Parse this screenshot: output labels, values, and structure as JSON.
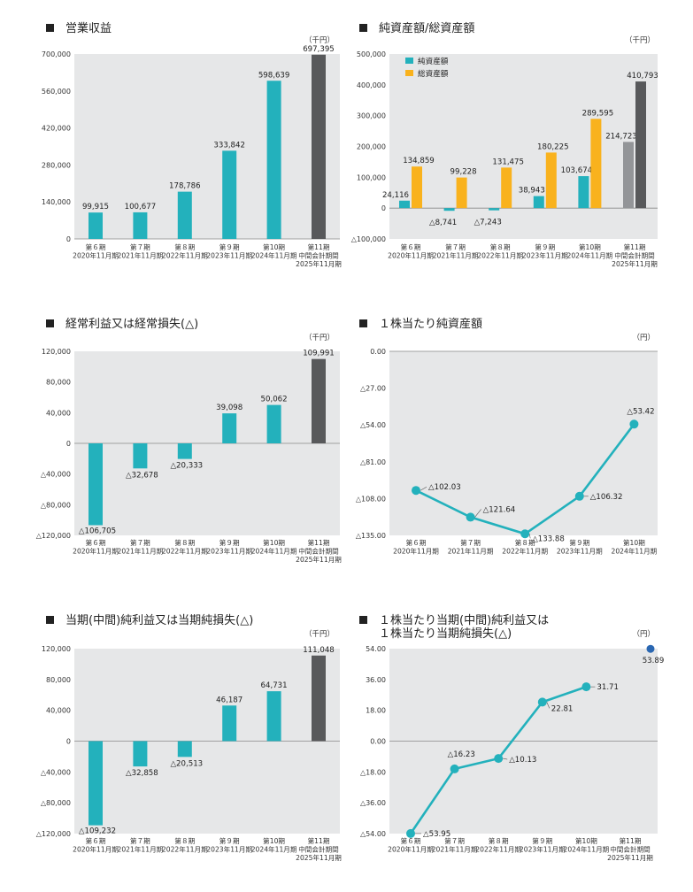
{
  "colors": {
    "plot_bg": "#e6e7e8",
    "teal": "#23b1bc",
    "dark": "#58595b",
    "orange": "#f9b21d",
    "gray": "#939598",
    "interim_dot": "#2a67b2",
    "axis": "#888888"
  },
  "chart_data": [
    {
      "id": "revenue",
      "type": "bar",
      "title": "営業収益",
      "unit": "（千円）",
      "categories": [
        [
          "第６期",
          "2020年11月期"
        ],
        [
          "第７期",
          "2021年11月期"
        ],
        [
          "第８期",
          "2022年11月期"
        ],
        [
          "第９期",
          "2023年11月期"
        ],
        [
          "第10期",
          "2024年11月期"
        ],
        [
          "第11期",
          "中間会計期間",
          "2025年11月期"
        ]
      ],
      "series": [
        {
          "values": [
            99915,
            100677,
            178786,
            333842,
            598639,
            697395
          ]
        }
      ],
      "labels": [
        "99,915",
        "100,677",
        "178,786",
        "333,842",
        "598,639",
        "697,395"
      ],
      "ylim": [
        0,
        700000
      ],
      "yticks": [
        0,
        140000,
        280000,
        420000,
        560000,
        700000
      ],
      "ytick_labels": [
        "0",
        "140,000",
        "280,000",
        "420,000",
        "560,000",
        "700,000"
      ]
    },
    {
      "id": "assets",
      "type": "bar",
      "title": "純資産額/総資産額",
      "unit": "（千円）",
      "categories": [
        [
          "第６期",
          "2020年11月期"
        ],
        [
          "第７期",
          "2021年11月期"
        ],
        [
          "第８期",
          "2022年11月期"
        ],
        [
          "第９期",
          "2023年11月期"
        ],
        [
          "第10期",
          "2024年11月期"
        ],
        [
          "第11期",
          "中間会計期間",
          "2025年11月期"
        ]
      ],
      "series": [
        {
          "name": "純資産額",
          "values": [
            24116,
            -8741,
            -7243,
            38943,
            103674,
            214723
          ],
          "labels": [
            "24,116",
            "△8,741",
            "△7,243",
            "38,943",
            "103,674",
            "214,723"
          ]
        },
        {
          "name": "総資産額",
          "values": [
            134859,
            99228,
            131475,
            180225,
            289595,
            410793
          ],
          "labels": [
            "134,859",
            "99,228",
            "131,475",
            "180,225",
            "289,595",
            "410,793"
          ]
        }
      ],
      "legend": "top-left",
      "ylim": [
        -100000,
        500000
      ],
      "yticks": [
        -100000,
        0,
        100000,
        200000,
        300000,
        400000,
        500000
      ],
      "ytick_labels": [
        "△100,000",
        "0",
        "100,000",
        "200,000",
        "300,000",
        "400,000",
        "500,000"
      ]
    },
    {
      "id": "ordinary",
      "type": "bar",
      "title": "経常利益又は経常損失(△)",
      "unit": "（千円）",
      "categories": [
        [
          "第６期",
          "2020年11月期"
        ],
        [
          "第７期",
          "2021年11月期"
        ],
        [
          "第８期",
          "2022年11月期"
        ],
        [
          "第９期",
          "2023年11月期"
        ],
        [
          "第10期",
          "2024年11月期"
        ],
        [
          "第11期",
          "中間会計期間",
          "2025年11月期"
        ]
      ],
      "series": [
        {
          "values": [
            -106705,
            -32678,
            -20333,
            39098,
            50062,
            109991
          ]
        }
      ],
      "labels": [
        "△106,705",
        "△32,678",
        "△20,333",
        "39,098",
        "50,062",
        "109,991"
      ],
      "ylim": [
        -120000,
        120000
      ],
      "yticks": [
        -120000,
        -80000,
        -40000,
        0,
        40000,
        80000,
        120000
      ],
      "ytick_labels": [
        "△120,000",
        "△80,000",
        "△40,000",
        "0",
        "40,000",
        "80,000",
        "120,000"
      ]
    },
    {
      "id": "bps",
      "type": "line",
      "title": "１株当たり純資産額",
      "unit": "（円）",
      "categories": [
        [
          "第６期",
          "2020年11月期"
        ],
        [
          "第７期",
          "2021年11月期"
        ],
        [
          "第８期",
          "2022年11月期"
        ],
        [
          "第９期",
          "2023年11月期"
        ],
        [
          "第10期",
          "2024年11月期"
        ]
      ],
      "series": [
        {
          "values": [
            -102.03,
            -121.64,
            -133.88,
            -106.32,
            -53.42
          ]
        }
      ],
      "labels": [
        "△102.03",
        "△121.64",
        "△133.88",
        "△106.32",
        "△53.42"
      ],
      "ylim": [
        -135,
        0
      ],
      "yticks": [
        -135,
        -108,
        -81,
        -54,
        -27,
        0
      ],
      "ytick_labels": [
        "△135.00",
        "△108.00",
        "△81.00",
        "△54.00",
        "△27.00",
        "0.00"
      ]
    },
    {
      "id": "netincome",
      "type": "bar",
      "title": "当期(中間)純利益又は当期純損失(△)",
      "unit": "（千円）",
      "categories": [
        [
          "第６期",
          "2020年11月期"
        ],
        [
          "第７期",
          "2021年11月期"
        ],
        [
          "第８期",
          "2022年11月期"
        ],
        [
          "第９期",
          "2023年11月期"
        ],
        [
          "第10期",
          "2024年11月期"
        ],
        [
          "第11期",
          "中間会計期間",
          "2025年11月期"
        ]
      ],
      "series": [
        {
          "values": [
            -109232,
            -32858,
            -20513,
            46187,
            64731,
            111048
          ]
        }
      ],
      "labels": [
        "△109,232",
        "△32,858",
        "△20,513",
        "46,187",
        "64,731",
        "111,048"
      ],
      "ylim": [
        -120000,
        120000
      ],
      "yticks": [
        -120000,
        -80000,
        -40000,
        0,
        40000,
        80000,
        120000
      ],
      "ytick_labels": [
        "△120,000",
        "△80,000",
        "△40,000",
        "0",
        "40,000",
        "80,000",
        "120,000"
      ]
    },
    {
      "id": "eps",
      "type": "line",
      "title": [
        "１株当たり当期(中間)純利益又は",
        "１株当たり当期純損失(△)"
      ],
      "unit": "（円）",
      "categories": [
        [
          "第６期",
          "2020年11月期"
        ],
        [
          "第７期",
          "2021年11月期"
        ],
        [
          "第８期",
          "2022年11月期"
        ],
        [
          "第９期",
          "2023年11月期"
        ],
        [
          "第10期",
          "2024年11月期"
        ],
        [
          "第11期",
          "中間会計期間",
          "2025年11月期"
        ]
      ],
      "series": [
        {
          "values": [
            -53.95,
            -16.23,
            -10.13,
            22.81,
            31.71
          ]
        }
      ],
      "labels": [
        "△53.95",
        "△16.23",
        "△10.13",
        "22.81",
        "31.71"
      ],
      "interim": {
        "value": 53.89,
        "label": "53.89"
      },
      "ylim": [
        -54,
        54
      ],
      "yticks": [
        -54,
        -36,
        -18,
        0,
        18,
        36,
        54
      ],
      "ytick_labels": [
        "△54.00",
        "△36.00",
        "△18.00",
        "0.00",
        "18.00",
        "36.00",
        "54.00"
      ]
    }
  ]
}
